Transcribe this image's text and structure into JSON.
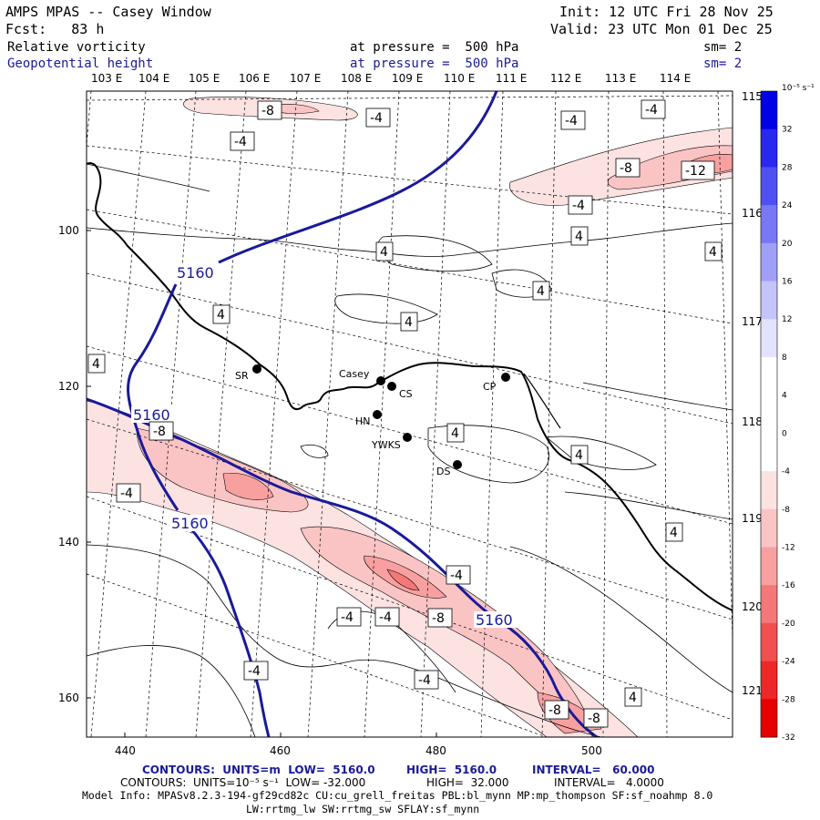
{
  "header": {
    "title": "AMPS MPAS -- Casey Window",
    "init": "Init: 12 UTC Fri 28 Nov 25",
    "fcst": "Fcst:   83 h",
    "valid": "Valid: 23 UTC Mon 01 Dec 25",
    "field1": "Relative vorticity",
    "field1_level": "at pressure =  500 hPa",
    "field1_sm": "sm= 2",
    "field2": "Geopotential height",
    "field2_level": "at pressure =  500 hPa",
    "field2_sm": "sm= 2"
  },
  "axes": {
    "top_lon_labels": [
      "103 E",
      "104 E",
      "105 E",
      "106 E",
      "107 E",
      "108 E",
      "109 E",
      "110 E",
      "111 E",
      "112 E",
      "113 E",
      "114 E"
    ],
    "right_lon_labels": [
      "115 E",
      "116 E",
      "117 E",
      "118 E",
      "119 E",
      "120 E",
      "121 E"
    ],
    "x_ticks": [
      "440",
      "460",
      "480",
      "500"
    ],
    "y_ticks": [
      "100",
      "120",
      "140",
      "160"
    ]
  },
  "colorbar": {
    "unit": "10⁻⁵ s⁻¹",
    "labels": [
      "32",
      "28",
      "24",
      "20",
      "16",
      "12",
      "8",
      "4",
      "0",
      "-4",
      "-8",
      "-12",
      "-16",
      "-20",
      "-24",
      "-28",
      "-32"
    ],
    "colors": [
      "#0000e6",
      "#2828ee",
      "#5050f2",
      "#7878f5",
      "#a0a0f8",
      "#c4c4fb",
      "#e2e2fd",
      "#ffffff",
      "#ffffff",
      "#ffffff",
      "#fde2e2",
      "#fbc4c4",
      "#f8a0a0",
      "#f57878",
      "#f25050",
      "#ee2828",
      "#e60000"
    ]
  },
  "stations": [
    {
      "code": "SR"
    },
    {
      "code": "Casey"
    },
    {
      "code": "CS"
    },
    {
      "code": "CP"
    },
    {
      "code": "HN"
    },
    {
      "code": "YWKS"
    },
    {
      "code": "DS"
    }
  ],
  "contour_labels": {
    "height": [
      "5160",
      "5160",
      "5160",
      "5160"
    ],
    "vorticity": [
      "-8",
      "-4",
      "-4",
      "-4",
      "-4",
      "-8",
      "-12",
      "-4",
      "4",
      "4",
      "4",
      "4",
      "4",
      "4",
      "4",
      "-8",
      "-4",
      "4",
      "4",
      "4",
      "-4",
      "-4",
      "-4",
      "-4",
      "-8",
      "-4",
      "-8",
      "-8",
      "4"
    ]
  },
  "footer": {
    "line1_a": "CONTOURS:  UNITS=m  LOW=  5160.0",
    "line1_b": "HIGH=  5160.0",
    "line1_c": "INTERVAL=   60.000",
    "line2_a": "CONTOURS:  UNITS=10⁻⁵ s⁻¹  LOW= -32.000",
    "line2_b": "HIGH=  32.000",
    "line2_c": "INTERVAL=   4.0000",
    "line3": "Model Info: MPASv8.2.3-194-gf29cd82c CU:cu_grell_freitas PBL:bl_mynn MP:mp_thompson SF:sf_noahmp 8.0",
    "line4": "LW:rrtmg_lw SW:rrtmg_sw SFLAY:sf_mynn"
  }
}
